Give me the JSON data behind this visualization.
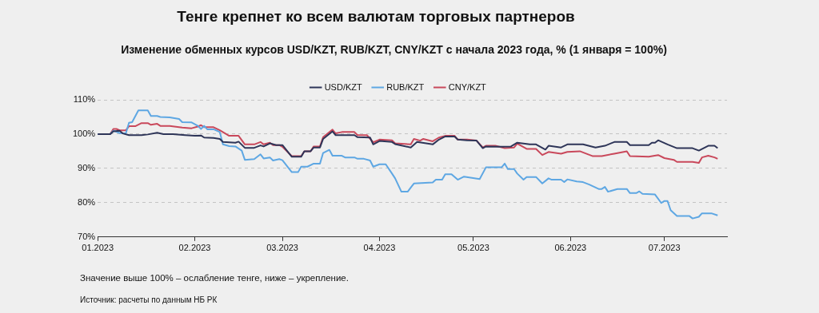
{
  "chart_data": {
    "type": "line",
    "title": "Тенге крепнет ко всем валютам торговых партнеров",
    "subtitle": "Изменение обменных курсов USD/KZT, RUB/KZT, CNY/KZT с начала 2023 года, % (1 января = 100%)",
    "annotations": [
      "Значение выше 100% – ослабление тенге, ниже – укрепление.",
      "Источник: расчеты по данным НБ РК"
    ],
    "xlim": [
      "2023-01-01",
      "2023-07-21"
    ],
    "xticks": [
      {
        "value": "2023-01-01",
        "label": "01.2023"
      },
      {
        "value": "2023-02-01",
        "label": "02.2023"
      },
      {
        "value": "2023-03-01",
        "label": "03.2023"
      },
      {
        "value": "2023-04-01",
        "label": "04.2023"
      },
      {
        "value": "2023-05-01",
        "label": "05.2023"
      },
      {
        "value": "2023-06-01",
        "label": "06.2023"
      },
      {
        "value": "2023-07-01",
        "label": "07.2023"
      }
    ],
    "ylim": [
      70,
      110
    ],
    "yticks": [
      {
        "value": 70,
        "label": "70%"
      },
      {
        "value": 80,
        "label": "80%"
      },
      {
        "value": 90,
        "label": "90%"
      },
      {
        "value": 100,
        "label": "100%"
      },
      {
        "value": 110,
        "label": "110%"
      }
    ],
    "grid": "y",
    "legend": "top",
    "marker": "none",
    "line_style": "solid",
    "series": [
      {
        "name": "USD/KZT",
        "color": "#2e3558",
        "x": [
          "2023-01-01",
          "2023-01-05",
          "2023-01-06",
          "2023-01-08",
          "2023-01-09",
          "2023-01-11",
          "2023-01-15",
          "2023-01-17",
          "2023-01-20",
          "2023-01-22",
          "2023-01-25",
          "2023-01-29",
          "2023-02-01",
          "2023-02-03",
          "2023-02-04",
          "2023-02-07",
          "2023-02-09",
          "2023-02-10",
          "2023-02-14",
          "2023-02-15",
          "2023-02-17",
          "2023-02-20",
          "2023-02-22",
          "2023-02-23",
          "2023-02-25",
          "2023-02-27",
          "2023-03-01",
          "2023-03-04",
          "2023-03-07",
          "2023-03-08",
          "2023-03-10",
          "2023-03-11",
          "2023-03-13",
          "2023-03-14",
          "2023-03-17",
          "2023-03-18",
          "2023-03-24",
          "2023-03-25",
          "2023-03-29",
          "2023-03-30",
          "2023-04-01",
          "2023-04-05",
          "2023-04-06",
          "2023-04-11",
          "2023-04-13",
          "2023-04-18",
          "2023-04-20",
          "2023-04-22",
          "2023-04-25",
          "2023-04-26",
          "2023-04-29",
          "2023-05-02",
          "2023-05-04",
          "2023-05-05",
          "2023-05-10",
          "2023-05-13",
          "2023-05-15",
          "2023-05-19",
          "2023-05-21",
          "2023-05-24",
          "2023-05-25",
          "2023-05-29",
          "2023-05-31",
          "2023-06-05",
          "2023-06-09",
          "2023-06-12",
          "2023-06-15",
          "2023-06-19",
          "2023-06-20",
          "2023-06-26",
          "2023-06-27",
          "2023-06-28",
          "2023-06-29",
          "2023-07-02",
          "2023-07-05",
          "2023-07-10",
          "2023-07-12",
          "2023-07-15",
          "2023-07-17",
          "2023-07-18"
        ],
        "values": [
          100,
          100,
          100.8,
          101,
          100.2,
          99.7,
          99.7,
          99.9,
          100.4,
          100,
          100,
          99.7,
          99.5,
          99.6,
          99,
          98.9,
          98.6,
          97.7,
          97.5,
          97.8,
          96,
          96,
          96.7,
          96.4,
          97.3,
          96.8,
          96.8,
          93.4,
          93.4,
          95,
          95,
          96.1,
          96.1,
          98.6,
          100.8,
          99.7,
          99.7,
          99.1,
          99,
          97,
          98,
          97.7,
          97.1,
          96.1,
          97.7,
          97,
          98.4,
          99.3,
          99.3,
          98.4,
          98.2,
          98.1,
          95.9,
          96.4,
          96.3,
          96.4,
          97.5,
          97,
          97,
          95.5,
          96.6,
          96.1,
          97,
          97,
          96.1,
          96.6,
          97.7,
          97.7,
          96.8,
          96.8,
          97.5,
          97.5,
          98.2,
          97,
          95.9,
          95.9,
          95.2,
          96.6,
          96.6,
          95.9
        ]
      },
      {
        "name": "RUB/KZT",
        "color": "#5ea7e3",
        "x": [
          "2023-01-01",
          "2023-01-05",
          "2023-01-06",
          "2023-01-08",
          "2023-01-10",
          "2023-01-11",
          "2023-01-12",
          "2023-01-14",
          "2023-01-17",
          "2023-01-18",
          "2023-01-20",
          "2023-01-21",
          "2023-01-24",
          "2023-01-27",
          "2023-01-28",
          "2023-01-31",
          "2023-02-02",
          "2023-02-03",
          "2023-02-04",
          "2023-02-05",
          "2023-02-07",
          "2023-02-09",
          "2023-02-10",
          "2023-02-12",
          "2023-02-14",
          "2023-02-16",
          "2023-02-17",
          "2023-02-20",
          "2023-02-22",
          "2023-02-23",
          "2023-02-25",
          "2023-02-26",
          "2023-02-28",
          "2023-03-01",
          "2023-03-04",
          "2023-03-06",
          "2023-03-07",
          "2023-03-09",
          "2023-03-11",
          "2023-03-13",
          "2023-03-14",
          "2023-03-16",
          "2023-03-17",
          "2023-03-20",
          "2023-03-21",
          "2023-03-24",
          "2023-03-25",
          "2023-03-27",
          "2023-03-29",
          "2023-03-30",
          "2023-04-01",
          "2023-04-03",
          "2023-04-05",
          "2023-04-06",
          "2023-04-08",
          "2023-04-10",
          "2023-04-11",
          "2023-04-12",
          "2023-04-18",
          "2023-04-19",
          "2023-04-21",
          "2023-04-22",
          "2023-04-24",
          "2023-04-26",
          "2023-04-28",
          "2023-05-03",
          "2023-05-05",
          "2023-05-10",
          "2023-05-11",
          "2023-05-12",
          "2023-05-14",
          "2023-05-15",
          "2023-05-17",
          "2023-05-18",
          "2023-05-21",
          "2023-05-23",
          "2023-05-25",
          "2023-05-26",
          "2023-05-29",
          "2023-05-30",
          "2023-05-31",
          "2023-06-03",
          "2023-06-05",
          "2023-06-07",
          "2023-06-10",
          "2023-06-11",
          "2023-06-12",
          "2023-06-13",
          "2023-06-16",
          "2023-06-19",
          "2023-06-20",
          "2023-06-22",
          "2023-06-23",
          "2023-06-24",
          "2023-06-28",
          "2023-06-30",
          "2023-07-01",
          "2023-07-02",
          "2023-07-03",
          "2023-07-05",
          "2023-07-09",
          "2023-07-10",
          "2023-07-12",
          "2023-07-13",
          "2023-07-16",
          "2023-07-18"
        ],
        "values": [
          100,
          100,
          101,
          100.3,
          100.2,
          103.3,
          103.5,
          106.9,
          106.9,
          105.3,
          105.3,
          105,
          104.9,
          104.4,
          103.5,
          103.4,
          102.4,
          101.5,
          102.4,
          101.4,
          101.4,
          100.6,
          97,
          96.5,
          96.4,
          95.2,
          92.5,
          92.7,
          94.1,
          92.9,
          93.2,
          92.3,
          92.7,
          92.4,
          88.9,
          88.9,
          90.5,
          90.5,
          91.4,
          91.4,
          94.5,
          95.4,
          93.7,
          93.7,
          93.2,
          93.2,
          92.8,
          92.8,
          92.3,
          90.5,
          91.2,
          91.2,
          88.5,
          87.1,
          83.2,
          83.2,
          84.4,
          85.6,
          85.9,
          86.7,
          86.7,
          88.3,
          88.3,
          86.7,
          87.6,
          86.9,
          90.3,
          90.3,
          91.4,
          89.8,
          89.8,
          88.5,
          86.7,
          87.5,
          87.5,
          85.6,
          87.1,
          86.7,
          86.7,
          86,
          86.8,
          86.2,
          86,
          85.3,
          84,
          84,
          84.6,
          83.2,
          84,
          84,
          82.8,
          82.8,
          83.3,
          82.6,
          82.4,
          79.9,
          80.5,
          80.5,
          77.8,
          76.1,
          76.1,
          75.4,
          75.9,
          76.9,
          76.9,
          76.3
        ]
      },
      {
        "name": "CNY/KZT",
        "color": "#c9485b",
        "x": [
          "2023-01-01",
          "2023-01-05",
          "2023-01-06",
          "2023-01-07",
          "2023-01-08",
          "2023-01-10",
          "2023-01-11",
          "2023-01-13",
          "2023-01-15",
          "2023-01-17",
          "2023-01-18",
          "2023-01-20",
          "2023-01-21",
          "2023-01-24",
          "2023-01-28",
          "2023-01-31",
          "2023-02-02",
          "2023-02-03",
          "2023-02-04",
          "2023-02-07",
          "2023-02-09",
          "2023-02-12",
          "2023-02-15",
          "2023-02-17",
          "2023-02-20",
          "2023-02-22",
          "2023-02-23",
          "2023-02-25",
          "2023-02-26",
          "2023-02-28",
          "2023-03-01",
          "2023-03-04",
          "2023-03-07",
          "2023-03-08",
          "2023-03-10",
          "2023-03-11",
          "2023-03-13",
          "2023-03-14",
          "2023-03-17",
          "2023-03-18",
          "2023-03-20",
          "2023-03-24",
          "2023-03-25",
          "2023-03-28",
          "2023-03-30",
          "2023-04-01",
          "2023-04-05",
          "2023-04-06",
          "2023-04-11",
          "2023-04-12",
          "2023-04-14",
          "2023-04-15",
          "2023-04-18",
          "2023-04-20",
          "2023-04-22",
          "2023-04-25",
          "2023-04-26",
          "2023-04-29",
          "2023-05-02",
          "2023-05-04",
          "2023-05-05",
          "2023-05-08",
          "2023-05-11",
          "2023-05-14",
          "2023-05-15",
          "2023-05-18",
          "2023-05-21",
          "2023-05-23",
          "2023-05-25",
          "2023-05-29",
          "2023-05-31",
          "2023-06-04",
          "2023-06-08",
          "2023-06-11",
          "2023-06-15",
          "2023-06-19",
          "2023-06-20",
          "2023-06-26",
          "2023-06-29",
          "2023-07-01",
          "2023-07-04",
          "2023-07-05",
          "2023-07-10",
          "2023-07-12",
          "2023-07-13",
          "2023-07-15",
          "2023-07-17",
          "2023-07-18"
        ],
        "values": [
          100,
          100,
          101.5,
          101.5,
          101.1,
          101.1,
          102.3,
          102.3,
          103.2,
          103.2,
          102.7,
          103,
          102.4,
          102.4,
          101.9,
          101.7,
          102.2,
          102.6,
          102,
          102,
          101.1,
          99.5,
          99.5,
          97,
          97,
          97.7,
          97,
          97.5,
          96.8,
          96.8,
          96.3,
          93.6,
          93.6,
          95,
          95,
          96.4,
          96.4,
          99.1,
          101.3,
          100.2,
          100.6,
          100.6,
          99.7,
          99.7,
          97.6,
          98.4,
          98.2,
          97.3,
          97,
          98.6,
          98.1,
          98.6,
          97.9,
          99,
          99.5,
          99.5,
          98.4,
          98.4,
          98.1,
          96.1,
          96.6,
          96.6,
          95.9,
          96.1,
          97.2,
          95.7,
          95.7,
          93.9,
          94.8,
          94.3,
          94.8,
          95,
          93.6,
          93.6,
          94.3,
          95,
          93.6,
          93.4,
          93.9,
          93,
          92.5,
          91.9,
          91.9,
          91.6,
          93.2,
          93.7,
          93.2,
          92.8
        ]
      }
    ]
  }
}
